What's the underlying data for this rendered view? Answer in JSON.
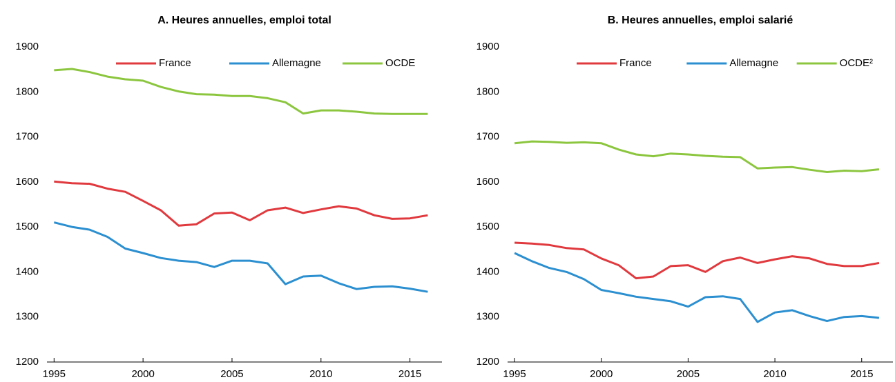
{
  "chart_data": [
    {
      "type": "line",
      "title": "A. Heures annuelles, emploi total",
      "x": [
        1995,
        1996,
        1997,
        1998,
        1999,
        2000,
        2001,
        2002,
        2003,
        2004,
        2005,
        2006,
        2007,
        2008,
        2009,
        2010,
        2011,
        2012,
        2013,
        2014,
        2015,
        2016
      ],
      "series": [
        {
          "name": "France",
          "color": "#e0393e",
          "values": [
            1601,
            1597,
            1596,
            1585,
            1578,
            1558,
            1537,
            1503,
            1506,
            1530,
            1532,
            1515,
            1537,
            1543,
            1531,
            1539,
            1546,
            1541,
            1526,
            1518,
            1519,
            1526
          ]
        },
        {
          "name": "Allemagne",
          "color": "#2b8fd0",
          "values": [
            1510,
            1500,
            1494,
            1478,
            1452,
            1442,
            1431,
            1425,
            1422,
            1411,
            1425,
            1425,
            1419,
            1373,
            1390,
            1392,
            1375,
            1362,
            1367,
            1368,
            1363,
            1356
          ]
        },
        {
          "name": "OCDE",
          "color": "#8cc63f",
          "values": [
            1848,
            1851,
            1844,
            1834,
            1828,
            1825,
            1811,
            1801,
            1795,
            1794,
            1791,
            1791,
            1786,
            1777,
            1752,
            1759,
            1759,
            1756,
            1752,
            1751,
            1751,
            1751
          ]
        }
      ],
      "xlim": [
        1994.6,
        2016.8
      ],
      "xticks": [
        1995,
        2000,
        2005,
        2010,
        2015
      ],
      "ylim": [
        1200,
        1900
      ],
      "yticks": [
        1200,
        1300,
        1400,
        1500,
        1600,
        1700,
        1800,
        1900
      ],
      "grid": false,
      "legend": "top"
    },
    {
      "type": "line",
      "title": "B. Heures annuelles, emploi salarié",
      "x": [
        1995,
        1996,
        1997,
        1998,
        1999,
        2000,
        2001,
        2002,
        2003,
        2004,
        2005,
        2006,
        2007,
        2008,
        2009,
        2010,
        2011,
        2012,
        2013,
        2014,
        2015,
        2016
      ],
      "series": [
        {
          "name": "France",
          "color": "#e0393e",
          "values": [
            1465,
            1463,
            1460,
            1453,
            1450,
            1430,
            1415,
            1386,
            1390,
            1413,
            1415,
            1400,
            1424,
            1432,
            1420,
            1428,
            1435,
            1430,
            1418,
            1413,
            1413,
            1420
          ]
        },
        {
          "name": "Allemagne",
          "color": "#2b8fd0",
          "values": [
            1442,
            1424,
            1409,
            1400,
            1384,
            1360,
            1353,
            1345,
            1340,
            1335,
            1323,
            1344,
            1346,
            1340,
            1289,
            1310,
            1315,
            1302,
            1291,
            1300,
            1302,
            1298
          ]
        },
        {
          "name": "OCDE²",
          "color": "#8cc63f",
          "values": [
            1686,
            1690,
            1689,
            1687,
            1688,
            1686,
            1672,
            1661,
            1657,
            1663,
            1661,
            1658,
            1656,
            1655,
            1630,
            1632,
            1633,
            1627,
            1622,
            1625,
            1624,
            1628
          ]
        }
      ],
      "xlim": [
        1994.6,
        2016.8
      ],
      "xticks": [
        1995,
        2000,
        2005,
        2010,
        2015
      ],
      "ylim": [
        1200,
        1900
      ],
      "yticks": [
        1200,
        1300,
        1400,
        1500,
        1600,
        1700,
        1800,
        1900
      ],
      "grid": false,
      "legend": "top"
    }
  ]
}
